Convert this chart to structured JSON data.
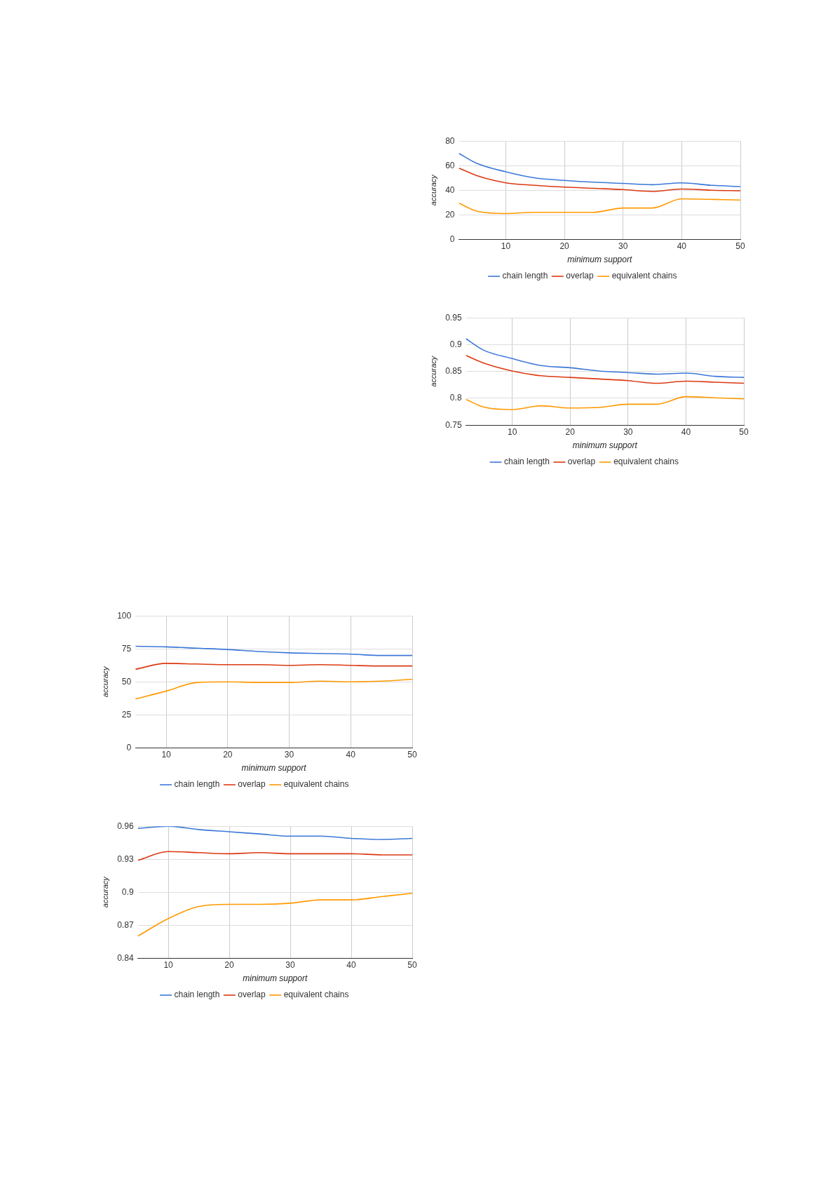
{
  "chart_data": [
    {
      "type": "line",
      "xlabel": "minimum support",
      "ylabel": "accuracy",
      "x": [
        2,
        5,
        10,
        15,
        20,
        25,
        30,
        35,
        40,
        45,
        50
      ],
      "xlim": [
        2,
        50
      ],
      "xticks": [
        10,
        20,
        30,
        40,
        50
      ],
      "ylim": [
        0,
        80
      ],
      "yticks": [
        0,
        20,
        40,
        60,
        80
      ],
      "grid": true,
      "legend": "bottom",
      "marker": "none",
      "line_style": "solid",
      "series": [
        {
          "name": "chain length",
          "color": "#3c78d8",
          "values": [
            70,
            62,
            55,
            50,
            48,
            46.5,
            45.5,
            44.5,
            46,
            44,
            43
          ]
        },
        {
          "name": "overlap",
          "color": "#dc3912",
          "values": [
            58,
            52,
            46,
            44,
            42.5,
            41.5,
            40.5,
            39,
            41,
            40,
            39.5
          ]
        },
        {
          "name": "equivalent chains",
          "color": "#ff9900",
          "values": [
            29.5,
            23,
            21,
            22,
            22,
            22,
            25.5,
            25.5,
            33,
            32.5,
            32
          ]
        }
      ]
    },
    {
      "type": "line",
      "xlabel": "minimum support",
      "ylabel": "accuracy",
      "x": [
        2,
        5,
        10,
        15,
        20,
        25,
        30,
        35,
        40,
        45,
        50
      ],
      "xlim": [
        2,
        50
      ],
      "xticks": [
        10,
        20,
        30,
        40,
        50
      ],
      "ylim": [
        0.75,
        0.95
      ],
      "yticks": [
        0.75,
        0.8,
        0.85,
        0.9,
        0.95
      ],
      "grid": true,
      "legend": "bottom",
      "marker": "none",
      "line_style": "solid",
      "series": [
        {
          "name": "chain length",
          "color": "#3c78d8",
          "values": [
            0.911,
            0.89,
            0.874,
            0.861,
            0.857,
            0.851,
            0.848,
            0.845,
            0.847,
            0.841,
            0.839
          ]
        },
        {
          "name": "overlap",
          "color": "#dc3912",
          "values": [
            0.88,
            0.866,
            0.851,
            0.842,
            0.839,
            0.836,
            0.833,
            0.828,
            0.832,
            0.83,
            0.828
          ]
        },
        {
          "name": "equivalent chains",
          "color": "#ff9900",
          "values": [
            0.798,
            0.784,
            0.779,
            0.786,
            0.782,
            0.783,
            0.789,
            0.789,
            0.803,
            0.801,
            0.799
          ]
        }
      ]
    },
    {
      "type": "line",
      "xlabel": "minimum support",
      "ylabel": "accuracy",
      "x": [
        5,
        10,
        15,
        20,
        25,
        30,
        35,
        40,
        45,
        50
      ],
      "xlim": [
        5,
        50
      ],
      "xticks": [
        10,
        20,
        30,
        40,
        50
      ],
      "ylim": [
        0,
        100
      ],
      "yticks": [
        0,
        25,
        50,
        75,
        100
      ],
      "grid": true,
      "legend": "bottom",
      "marker": "none",
      "line_style": "solid",
      "series": [
        {
          "name": "chain length",
          "color": "#3c78d8",
          "values": [
            77,
            76.5,
            75.5,
            74.5,
            73,
            72,
            71.5,
            71,
            70,
            70
          ]
        },
        {
          "name": "overlap",
          "color": "#dc3912",
          "values": [
            59.5,
            64,
            63.5,
            63,
            63,
            62.5,
            63,
            62.5,
            62,
            62
          ]
        },
        {
          "name": "equivalent chains",
          "color": "#ff9900",
          "values": [
            37,
            43,
            49.5,
            50,
            49.5,
            49.5,
            50.5,
            50,
            50.5,
            52
          ]
        }
      ]
    },
    {
      "type": "line",
      "xlabel": "minimum support",
      "ylabel": "accuracy",
      "x": [
        5,
        10,
        15,
        20,
        25,
        30,
        35,
        40,
        45,
        50
      ],
      "xlim": [
        5,
        50
      ],
      "xticks": [
        10,
        20,
        30,
        40,
        50
      ],
      "ylim": [
        0.84,
        0.96
      ],
      "yticks": [
        0.84,
        0.87,
        0.9,
        0.93,
        0.96
      ],
      "grid": true,
      "legend": "bottom",
      "marker": "none",
      "line_style": "solid",
      "series": [
        {
          "name": "chain length",
          "color": "#3c78d8",
          "values": [
            0.958,
            0.96,
            0.957,
            0.955,
            0.953,
            0.951,
            0.951,
            0.949,
            0.948,
            0.949
          ]
        },
        {
          "name": "overlap",
          "color": "#dc3912",
          "values": [
            0.929,
            0.937,
            0.936,
            0.935,
            0.936,
            0.935,
            0.935,
            0.935,
            0.934,
            0.934
          ]
        },
        {
          "name": "equivalent chains",
          "color": "#ff9900",
          "values": [
            0.86,
            0.876,
            0.887,
            0.889,
            0.889,
            0.89,
            0.893,
            0.893,
            0.896,
            0.899
          ]
        }
      ]
    }
  ]
}
